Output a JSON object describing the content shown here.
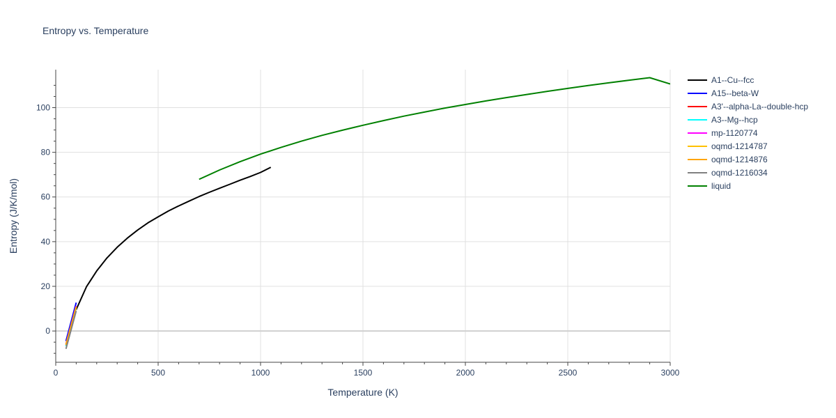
{
  "chart_data": {
    "type": "line",
    "title": "Entropy vs. Temperature",
    "xlabel": "Temperature (K)",
    "ylabel": "Entropy (J/K/mol)",
    "xlim": [
      0,
      3000
    ],
    "ylim": [
      -14,
      117
    ],
    "xticks": [
      0,
      500,
      1000,
      1500,
      2000,
      2500,
      3000
    ],
    "yticks": [
      0,
      20,
      40,
      60,
      80,
      100
    ],
    "grid": true,
    "legend_position": "right",
    "series": [
      {
        "name": "A1--Cu--fcc",
        "color": "#000000",
        "x": [
          100,
          150,
          200,
          250,
          300,
          350,
          400,
          450,
          500,
          550,
          600,
          650,
          700,
          750,
          800,
          850,
          900,
          950,
          1000,
          1050
        ],
        "y": [
          9.6,
          19.8,
          26.9,
          32.7,
          37.5,
          41.6,
          45.2,
          48.4,
          51.1,
          53.7,
          56.0,
          58.1,
          60.2,
          62.1,
          63.9,
          65.7,
          67.5,
          69.2,
          71.0,
          73.3
        ]
      },
      {
        "name": "A15--beta-W",
        "color": "#0000ff",
        "x": [
          50,
          100
        ],
        "y": [
          -4.5,
          12.7
        ]
      },
      {
        "name": "A3'--alpha-La--double-hcp",
        "color": "#ff0000",
        "x": [
          50,
          100
        ],
        "y": [
          -6.5,
          10.8
        ]
      },
      {
        "name": "A3--Mg--hcp",
        "color": "#00ffff",
        "x": [
          50,
          100
        ],
        "y": [
          -6.8,
          10.4
        ]
      },
      {
        "name": "mp-1120774",
        "color": "#ff00ff",
        "x": [
          50,
          100
        ],
        "y": [
          -5.8,
          11.2
        ]
      },
      {
        "name": "oqmd-1214787",
        "color": "#ffc000",
        "x": [
          50,
          100
        ],
        "y": [
          -6.0,
          10.9
        ]
      },
      {
        "name": "oqmd-1214876",
        "color": "#ffa500",
        "x": [
          50,
          100
        ],
        "y": [
          -6.3,
          10.6
        ]
      },
      {
        "name": "oqmd-1216034",
        "color": "#808080",
        "x": [
          50,
          100
        ],
        "y": [
          -8.0,
          9.0
        ]
      },
      {
        "name": "liquid",
        "color": "#008000",
        "x": [
          700,
          800,
          900,
          1000,
          1100,
          1200,
          1300,
          1400,
          1500,
          1600,
          1700,
          1800,
          1900,
          2000,
          2100,
          2200,
          2300,
          2400,
          2500,
          2600,
          2700,
          2800,
          2900,
          3000
        ],
        "y": [
          67.9,
          72.1,
          75.8,
          79.2,
          82.2,
          85.0,
          87.6,
          89.9,
          92.1,
          94.2,
          96.2,
          98.0,
          99.8,
          101.4,
          103.0,
          104.5,
          105.9,
          107.3,
          108.6,
          109.9,
          111.1,
          112.3,
          113.4,
          110.6
        ]
      }
    ]
  }
}
